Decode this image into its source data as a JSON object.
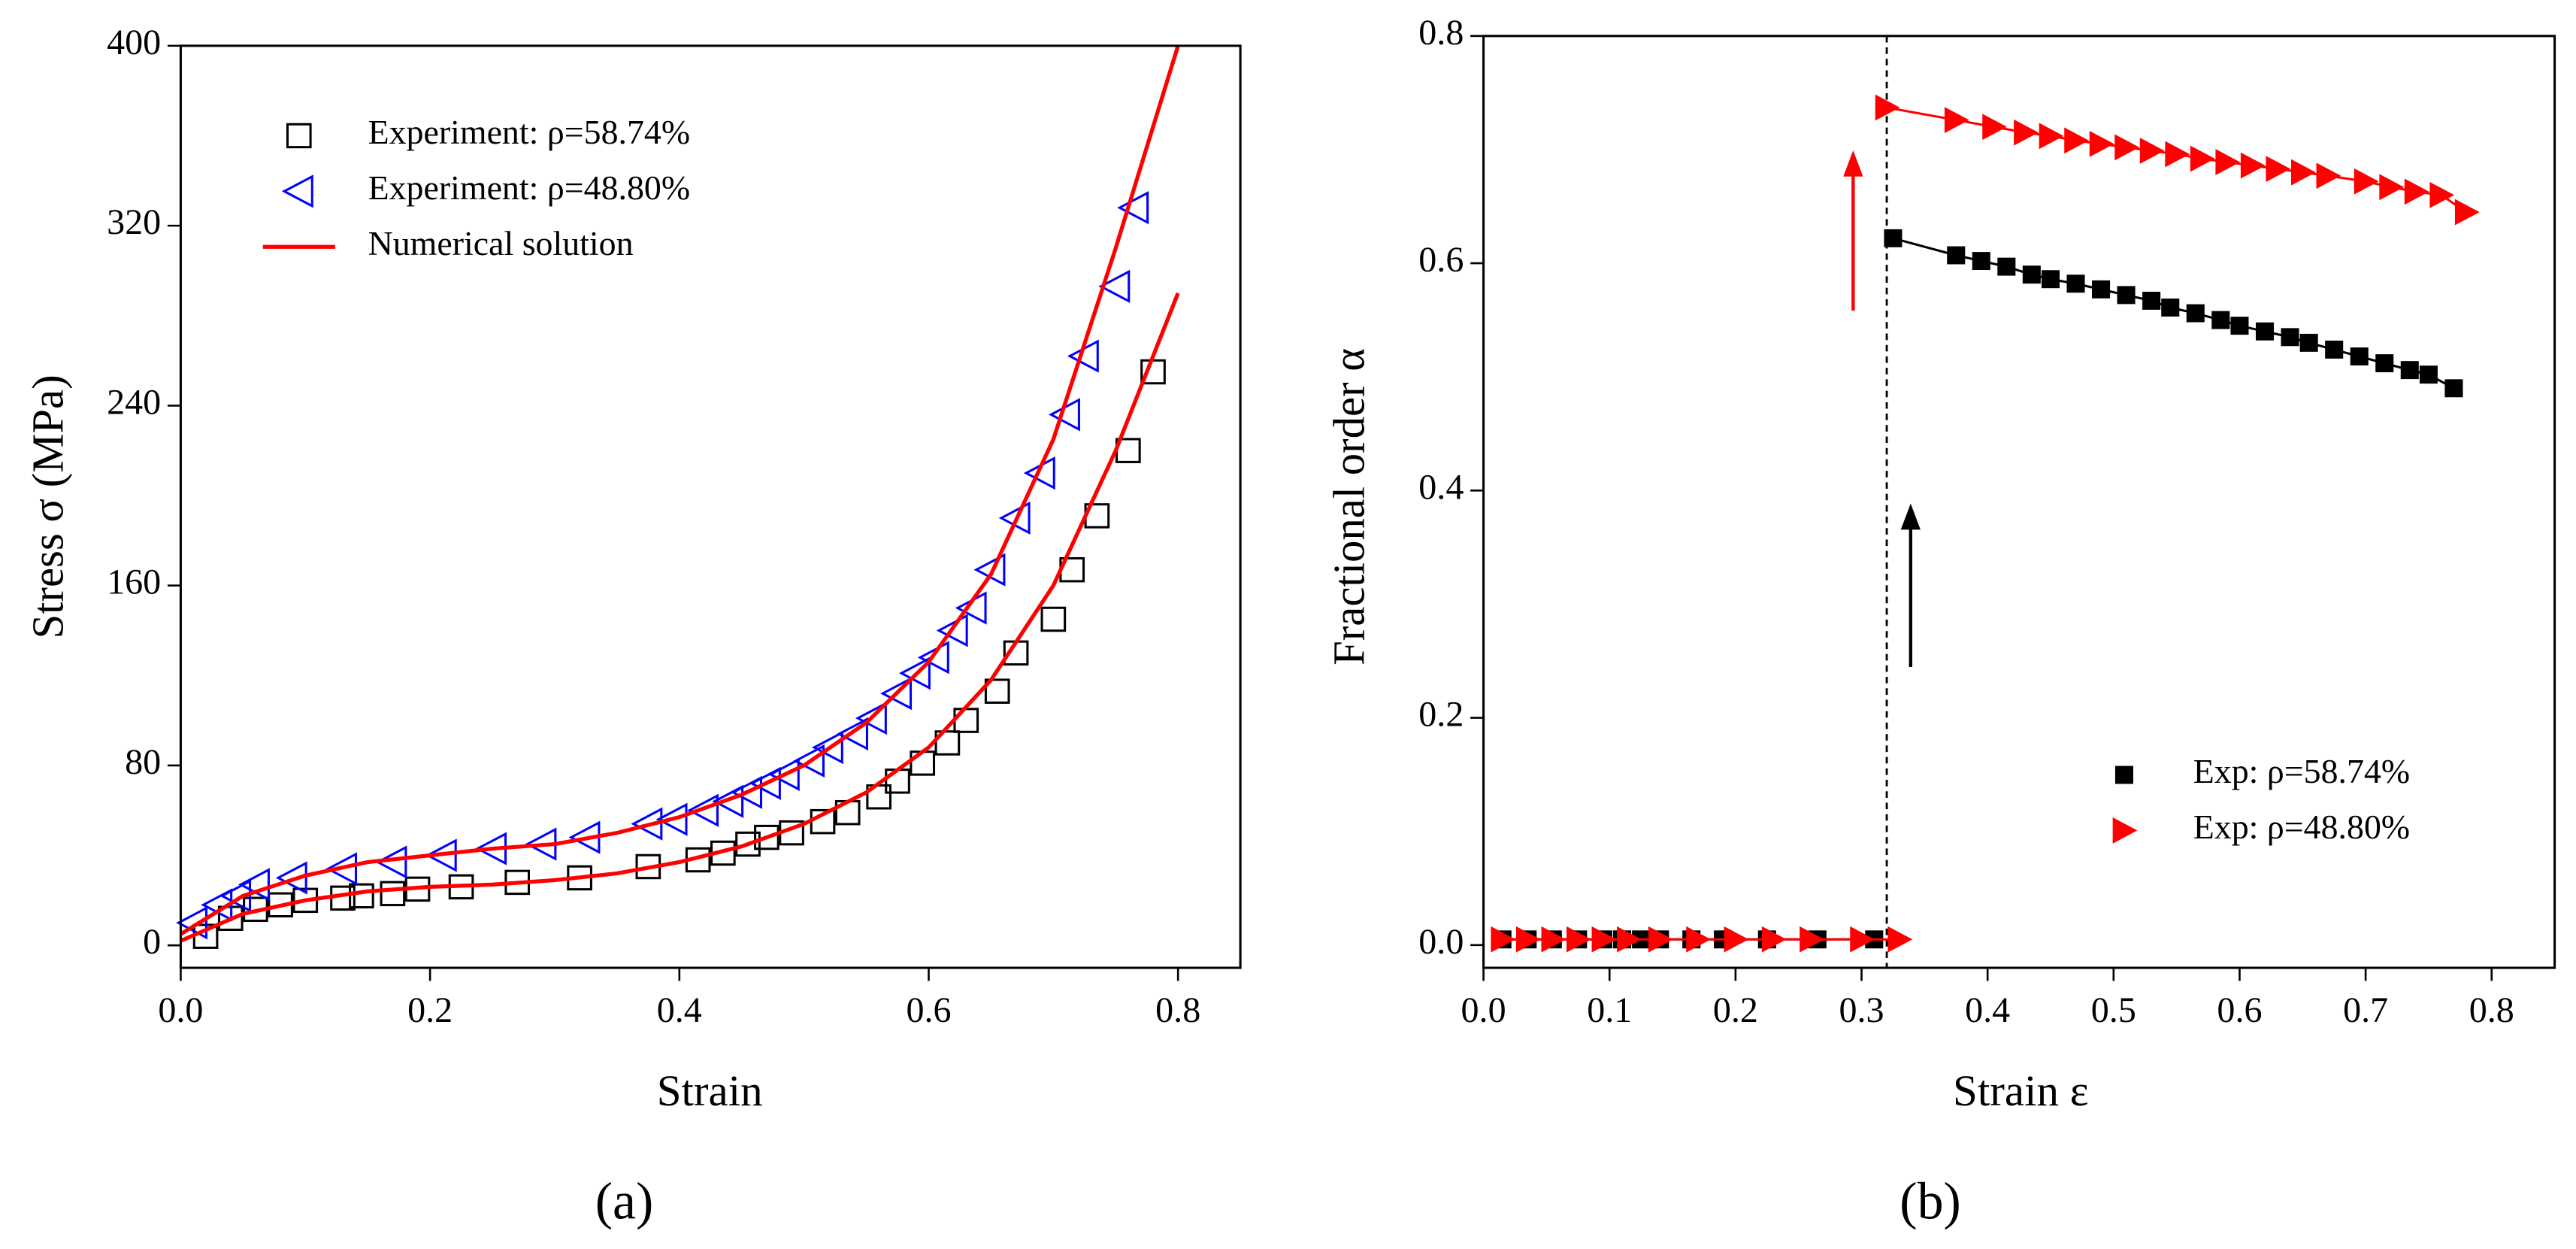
{
  "chart_data": [
    {
      "type": "scatter",
      "x_label": "Strain",
      "y_label": "Stress σ (MPa)",
      "caption": "(a)",
      "xlim": [
        0,
        0.85
      ],
      "ylim": [
        -10,
        400
      ],
      "xticks": [
        {
          "value": 0,
          "label": "0.0"
        },
        0.2,
        0.4,
        0.6,
        0.8
      ],
      "yticks": [
        0,
        80,
        160,
        240,
        320,
        400
      ],
      "legend": "upper left",
      "series": [
        {
          "name": "Experiment: ρ=58.74%",
          "color": "#000000",
          "marker": "open-square",
          "mode": "markers",
          "x": [
            0.02,
            0.04,
            0.06,
            0.08,
            0.1,
            0.13,
            0.145,
            0.17,
            0.19,
            0.225,
            0.27,
            0.32,
            0.375,
            0.415,
            0.435,
            0.455,
            0.47,
            0.49,
            0.515,
            0.535,
            0.56,
            0.575,
            0.595,
            0.615,
            0.63,
            0.655,
            0.67,
            0.7,
            0.715,
            0.735,
            0.76,
            0.78
          ],
          "values": [
            4,
            12,
            16,
            18,
            20,
            21,
            22,
            23,
            25,
            26,
            28,
            30,
            35,
            38,
            41,
            45,
            48,
            50,
            55,
            59,
            66,
            73,
            81,
            90,
            100,
            113,
            130,
            145,
            167,
            191,
            220,
            255
          ]
        },
        {
          "name": "Experiment: ρ=48.80%",
          "color": "#0000ff",
          "marker": "open-left-triangle",
          "mode": "markers",
          "x": [
            0.01,
            0.03,
            0.045,
            0.06,
            0.09,
            0.13,
            0.17,
            0.21,
            0.25,
            0.29,
            0.325,
            0.375,
            0.395,
            0.42,
            0.44,
            0.455,
            0.47,
            0.485,
            0.505,
            0.52,
            0.54,
            0.555,
            0.575,
            0.59,
            0.605,
            0.62,
            0.635,
            0.65,
            0.67,
            0.69,
            0.71,
            0.725,
            0.75,
            0.765
          ],
          "values": [
            10,
            18,
            22,
            27,
            30,
            34,
            37,
            40,
            43,
            45,
            48,
            54,
            56,
            60,
            64,
            68,
            72,
            76,
            82,
            88,
            94,
            101,
            112,
            121,
            128,
            140,
            150,
            167,
            190,
            210,
            236,
            262,
            293,
            328
          ]
        },
        {
          "name": "Numerical solution",
          "color": "#ff0000",
          "mode": "lines",
          "x": [
            0,
            0.05,
            0.1,
            0.15,
            0.2,
            0.25,
            0.3,
            0.35,
            0.4,
            0.45,
            0.5,
            0.55,
            0.6,
            0.65,
            0.7,
            0.75,
            0.8
          ],
          "values": [
            5,
            22,
            31,
            37,
            40,
            43,
            45,
            50,
            57,
            67,
            80,
            99,
            126,
            165,
            225,
            310,
            400
          ]
        },
        {
          "color": "#ff0000",
          "mode": "lines",
          "x": [
            0,
            0.05,
            0.1,
            0.15,
            0.2,
            0.25,
            0.3,
            0.35,
            0.4,
            0.45,
            0.5,
            0.55,
            0.6,
            0.65,
            0.7,
            0.75,
            0.8
          ],
          "values": [
            2,
            14,
            20,
            24,
            26,
            27,
            29,
            32,
            37,
            44,
            54,
            68,
            88,
            118,
            160,
            220,
            290
          ]
        }
      ]
    },
    {
      "type": "scatter",
      "x_label": "Strain ε",
      "y_label": "Fractional order α",
      "caption": "(b)",
      "xlim": [
        0,
        0.85
      ],
      "ylim": [
        -0.02,
        0.8
      ],
      "xticks": [
        {
          "value": 0,
          "label": "0.0"
        },
        0.1,
        0.2,
        0.3,
        0.4,
        0.5,
        0.6,
        0.7,
        0.8
      ],
      "yticks": [
        {
          "value": 0,
          "label": "0.0"
        },
        0.2,
        0.4,
        0.6,
        0.8
      ],
      "vline": 0.32,
      "legend": "lower right",
      "series": [
        {
          "name": "Exp: ρ=58.74%",
          "color": "#000000",
          "marker": "filled-square",
          "mode": "lines+markers",
          "x": [
            0.015,
            0.035,
            0.055,
            0.075,
            0.095,
            0.11,
            0.125,
            0.14,
            0.165,
            0.19,
            0.225,
            0.265,
            0.31,
            null,
            0.325,
            0.375,
            0.395,
            0.415,
            0.435,
            0.45,
            0.47,
            0.49,
            0.51,
            0.53,
            0.545,
            0.565,
            0.585,
            0.6,
            0.62,
            0.64,
            0.655,
            0.675,
            0.695,
            0.715,
            0.735,
            0.75,
            0.77
          ],
          "values": [
            0.005,
            0.005,
            0.005,
            0.005,
            0.005,
            0.005,
            0.005,
            0.005,
            0.005,
            0.005,
            0.005,
            0.005,
            0.005,
            null,
            0.622,
            0.607,
            0.602,
            0.597,
            0.59,
            0.586,
            0.582,
            0.577,
            0.572,
            0.567,
            0.561,
            0.556,
            0.55,
            0.545,
            0.54,
            0.535,
            0.53,
            0.524,
            0.518,
            0.512,
            0.506,
            0.502,
            0.49
          ]
        },
        {
          "name": "Exp: ρ=48.80%",
          "color": "#ff0000",
          "marker": "filled-right-triangle",
          "mode": "lines+markers",
          "x": [
            0.015,
            0.035,
            0.055,
            0.075,
            0.095,
            0.115,
            0.14,
            0.17,
            0.2,
            0.23,
            0.26,
            0.3,
            0.33,
            null,
            0.32,
            0.375,
            0.405,
            0.43,
            0.45,
            0.47,
            0.49,
            0.51,
            0.53,
            0.55,
            0.57,
            0.59,
            0.61,
            0.63,
            0.65,
            0.67,
            0.7,
            0.72,
            0.74,
            0.76,
            0.78
          ],
          "values": [
            0.005,
            0.005,
            0.005,
            0.005,
            0.005,
            0.005,
            0.005,
            0.005,
            0.005,
            0.005,
            0.005,
            0.005,
            0.005,
            null,
            0.737,
            0.726,
            0.72,
            0.715,
            0.712,
            0.708,
            0.705,
            0.702,
            0.699,
            0.696,
            0.692,
            0.689,
            0.686,
            0.683,
            0.68,
            0.677,
            0.672,
            0.667,
            0.663,
            0.66,
            0.645
          ]
        }
      ]
    }
  ]
}
